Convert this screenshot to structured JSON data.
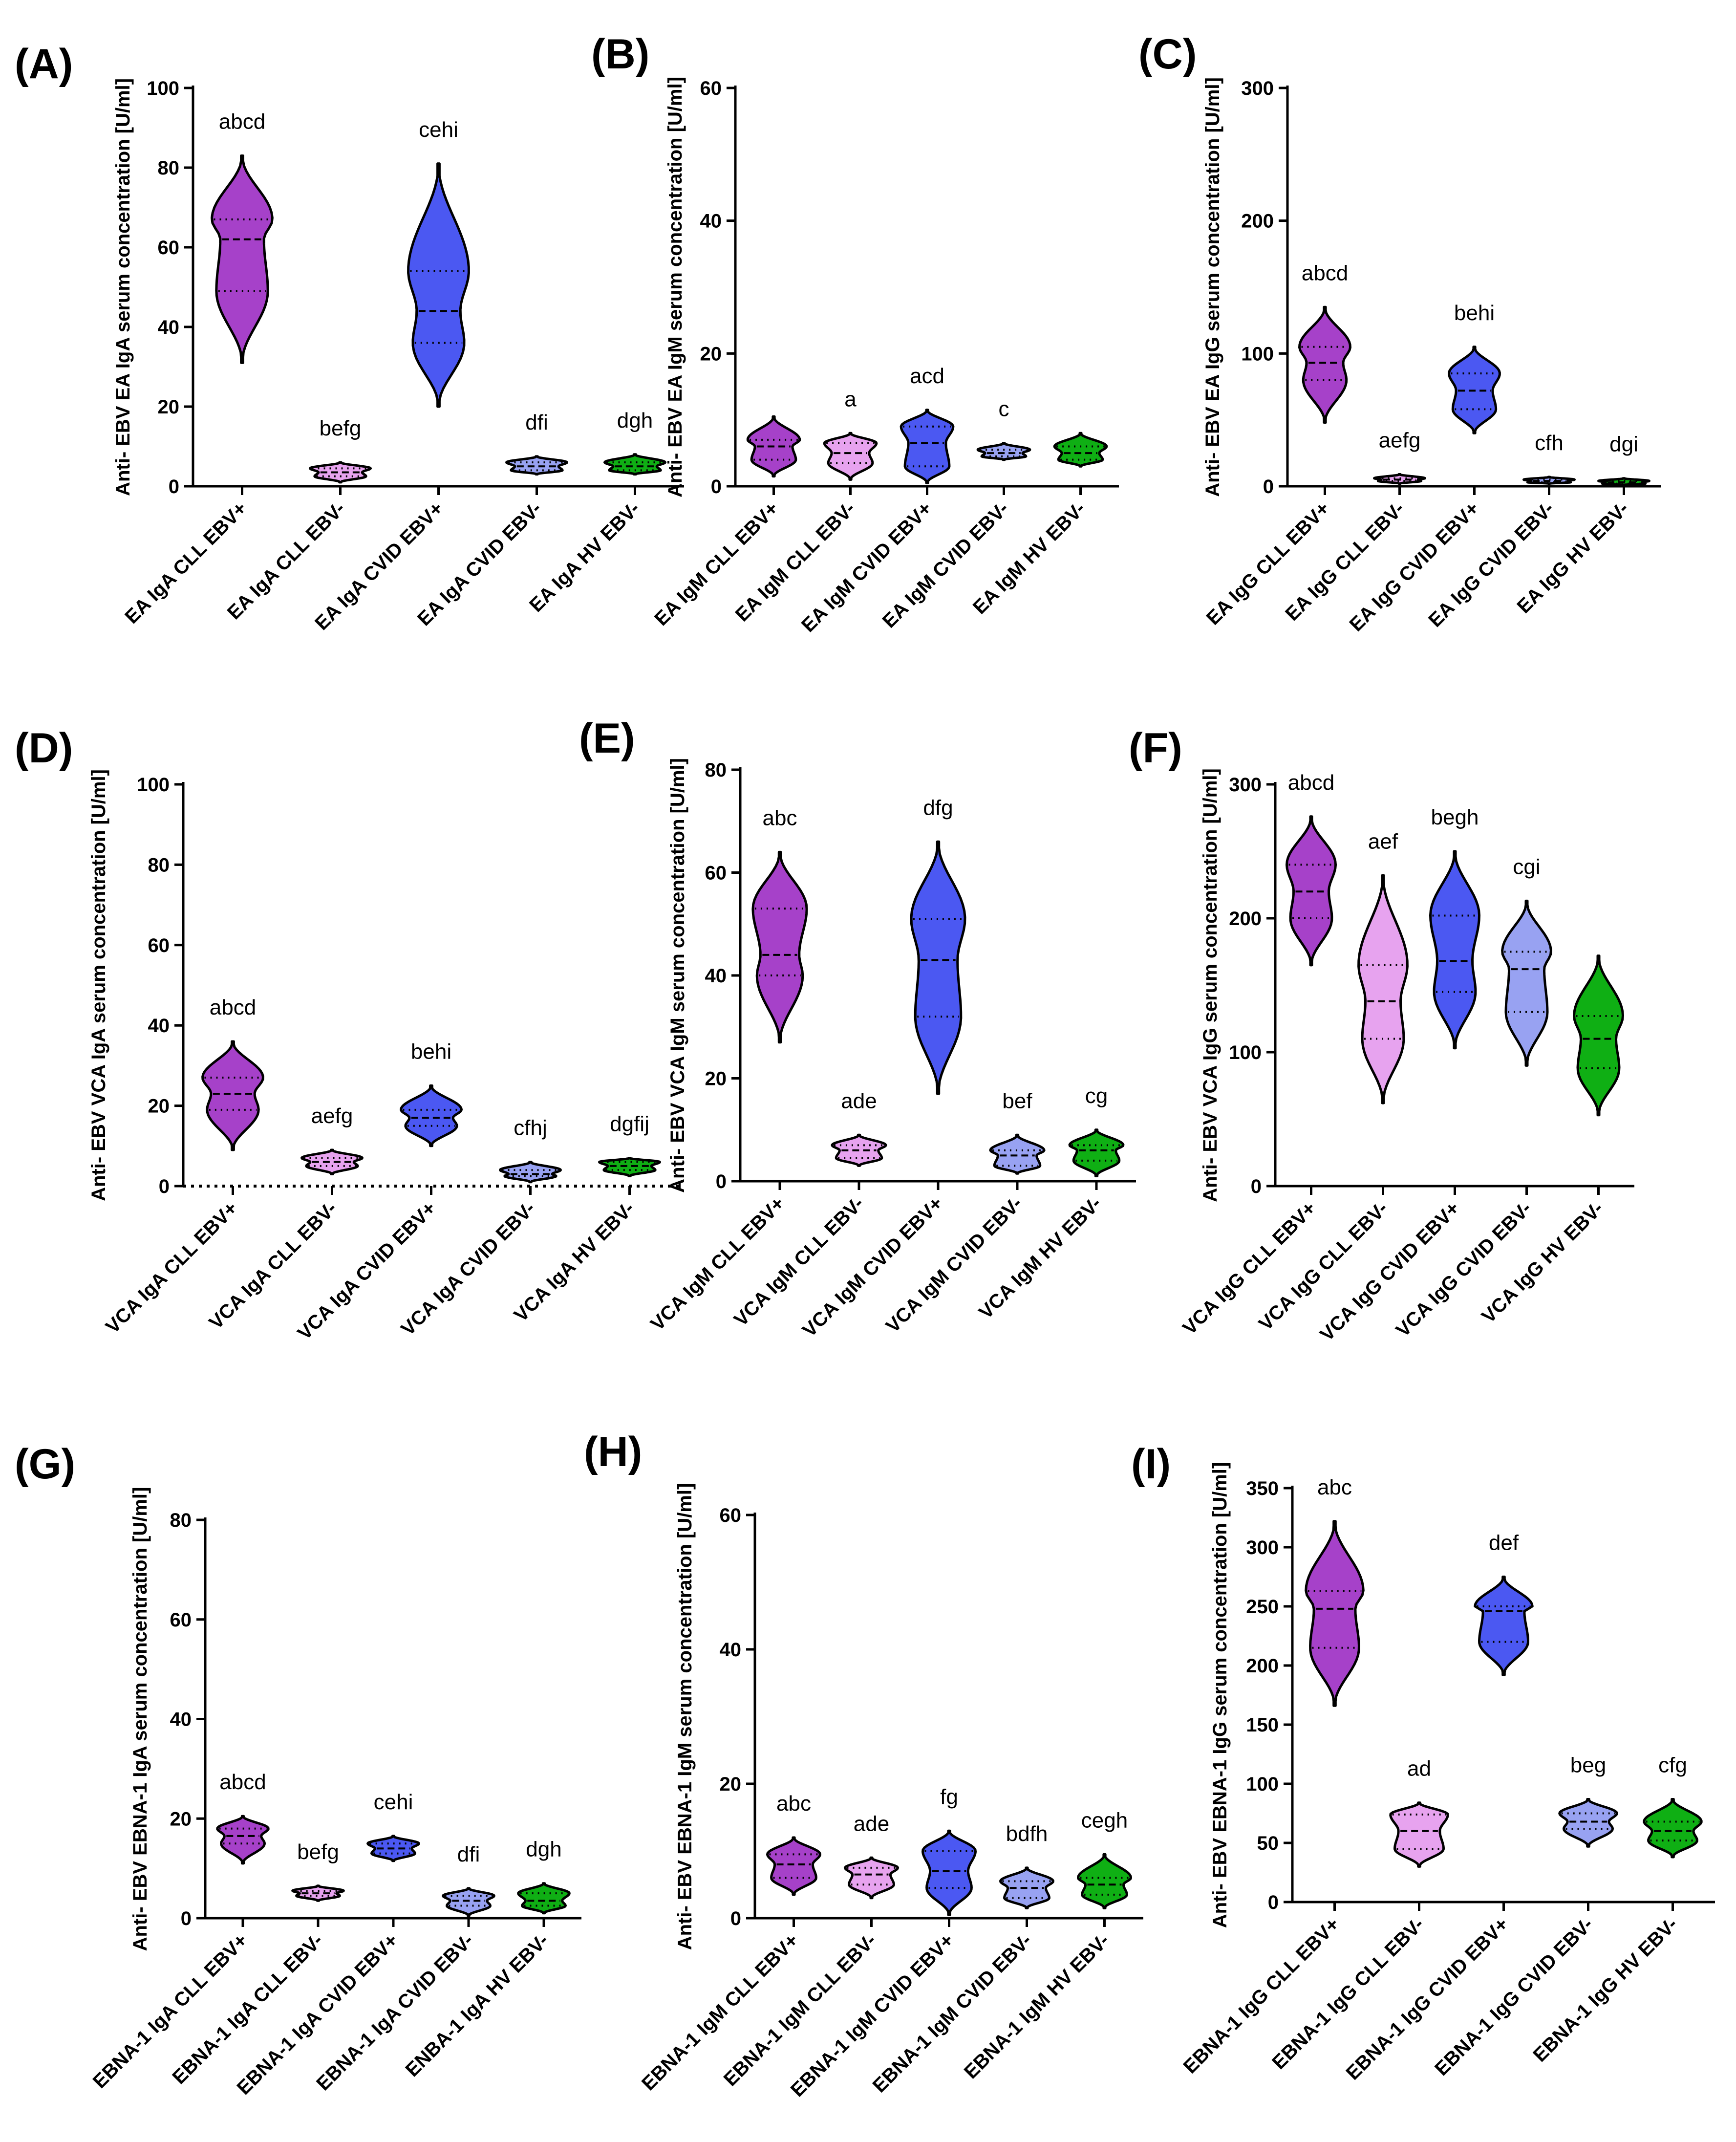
{
  "figure": {
    "colors": {
      "CLL EBV+": "#a641c9",
      "CLL EBV-": "#e7a3ef",
      "CVID EBV+": "#4b58f2",
      "CVID EBV-": "#98a2f2",
      "HV EBV-": "#0faf14"
    }
  },
  "chart_data": [
    {
      "type": "violin",
      "panel": "(A)",
      "ylabel": "Anti- EBV EA IgA serum concentration [U/ml]",
      "ylim": [
        0,
        100
      ],
      "yticks": [
        "0",
        "20",
        "40",
        "60",
        "80",
        "100"
      ],
      "categories": [
        "EA IgA CLL EBV+",
        "EA IgA CLL EBV-",
        "EA IgA CVID EBV+",
        "EA IgA CVID EBV-",
        "EA IgA HV EBV-"
      ],
      "groups": [
        "CLL EBV+",
        "CLL EBV-",
        "CVID EBV+",
        "CVID EBV-",
        "HV EBV-"
      ],
      "min": [
        31,
        1,
        20,
        3,
        3
      ],
      "q1": [
        49,
        2.5,
        36,
        4,
        4
      ],
      "median": [
        62,
        3.5,
        44,
        5,
        5
      ],
      "q3": [
        67,
        4.5,
        54,
        6,
        6
      ],
      "max": [
        83,
        6,
        81,
        7.5,
        8
      ],
      "significance": [
        "abcd",
        "befg",
        "cehi",
        "dfi",
        "dgh"
      ]
    },
    {
      "type": "violin",
      "panel": "(B)",
      "ylabel": "Anti- EBV EA IgM serum concentration [U/ml]",
      "ylim": [
        0,
        60
      ],
      "yticks": [
        "0",
        "20",
        "40",
        "60"
      ],
      "categories": [
        "EA IgM CLL EBV+",
        "EA IgM CLL EBV-",
        "EA IgM CVID EBV+",
        "EA IgM CVID EBV-",
        "EA IgM HV EBV-"
      ],
      "groups": [
        "CLL EBV+",
        "CLL EBV-",
        "CVID EBV+",
        "CVID EBV-",
        "HV EBV-"
      ],
      "min": [
        1.5,
        1,
        0.5,
        4,
        3
      ],
      "q1": [
        4,
        3.5,
        3,
        4.5,
        4
      ],
      "median": [
        6,
        5,
        6.5,
        5,
        5
      ],
      "q3": [
        7,
        6.5,
        9,
        5.5,
        6
      ],
      "max": [
        10.5,
        8,
        11.5,
        6.5,
        8
      ],
      "significance": [
        "",
        "a",
        "acd",
        "c",
        ""
      ]
    },
    {
      "type": "violin",
      "panel": "(C)",
      "ylabel": "Anti- EBV EA IgG serum concentration [U/ml]",
      "ylim": [
        0,
        300
      ],
      "yticks": [
        "0",
        "100",
        "200",
        "300"
      ],
      "categories": [
        "EA IgG CLL EBV+",
        "EA IgG CLL EBV-",
        "EA IgG CVID EBV+",
        "EA IgG CVID EBV-",
        "EA IgG HV EBV-"
      ],
      "groups": [
        "CLL EBV+",
        "CLL EBV-",
        "CVID EBV+",
        "CVID EBV-",
        "HV EBV-"
      ],
      "min": [
        48,
        2,
        40,
        2,
        1
      ],
      "q1": [
        80,
        4,
        58,
        3,
        2
      ],
      "median": [
        93,
        5,
        72,
        4,
        3
      ],
      "q3": [
        105,
        6,
        85,
        5,
        4
      ],
      "max": [
        135,
        9,
        105,
        7,
        6
      ],
      "significance": [
        "abcd",
        "aefg",
        "behi",
        "cfh",
        "dgi"
      ]
    },
    {
      "type": "violin",
      "panel": "(D)",
      "ylabel": "Anti- EBV VCA IgA serum concentration [U/ml]",
      "ylim": [
        0,
        100
      ],
      "yticks": [
        "0",
        "20",
        "40",
        "60",
        "80",
        "100"
      ],
      "categories": [
        "VCA IgA CLL EBV+",
        "VCA IgA CLL EBV-",
        "VCA IgA CVID EBV+",
        "VCA IgA CVID EBV-",
        "VCA IgA HV EBV-"
      ],
      "groups": [
        "CLL EBV+",
        "CLL EBV-",
        "CVID EBV+",
        "CVID EBV-",
        "HV EBV-"
      ],
      "min": [
        9,
        3,
        10,
        1,
        2.5
      ],
      "q1": [
        19,
        5,
        15,
        2.5,
        4
      ],
      "median": [
        23,
        6,
        17,
        3,
        5
      ],
      "q3": [
        27,
        7,
        19,
        4,
        6
      ],
      "max": [
        36,
        9,
        25,
        6,
        7
      ],
      "significance": [
        "abcd",
        "aefg",
        "behi",
        "cfhj",
        "dgfij"
      ],
      "baseline": "dotted line at 0"
    },
    {
      "type": "violin",
      "panel": "(E)",
      "ylabel": "Anti- EBV VCA IgM serum concentration [U/ml]",
      "ylim": [
        0,
        80
      ],
      "yticks": [
        "0",
        "20",
        "40",
        "60",
        "80"
      ],
      "categories": [
        "VCA IgM CLL EBV+",
        "VCA IgM CLL EBV-",
        "VCA IgM CVID EBV+",
        "VCA IgM CVID EBV-",
        "VCA IgM HV EBV-"
      ],
      "groups": [
        "CLL EBV+",
        "CLL EBV-",
        "CVID EBV+",
        "CVID EBV-",
        "HV EBV-"
      ],
      "min": [
        27,
        3,
        17,
        1.5,
        1
      ],
      "q1": [
        40,
        4.5,
        32,
        3,
        4
      ],
      "median": [
        44,
        6,
        43,
        5,
        6
      ],
      "q3": [
        53,
        7,
        51,
        6,
        7
      ],
      "max": [
        64,
        9,
        66,
        9,
        10
      ],
      "significance": [
        "abc",
        "ade",
        "dfg",
        "bef",
        "cg"
      ]
    },
    {
      "type": "violin",
      "panel": "(F)",
      "ylabel": "Anti- EBV VCA IgG serum concentration [U/ml]",
      "ylim": [
        0,
        300
      ],
      "yticks": [
        "0",
        "100",
        "200",
        "300"
      ],
      "categories": [
        "VCA IgG CLL EBV+",
        "VCA IgG CLL EBV-",
        "VCA IgG CVID EBV+",
        "VCA IgG CVID EBV-",
        "VCA IgG HV EBV-"
      ],
      "groups": [
        "CLL EBV+",
        "CLL EBV-",
        "CVID EBV+",
        "CVID EBV-",
        "HV EBV-"
      ],
      "min": [
        165,
        62,
        103,
        90,
        53
      ],
      "q1": [
        200,
        110,
        145,
        130,
        88
      ],
      "median": [
        220,
        138,
        168,
        162,
        110
      ],
      "q3": [
        240,
        165,
        202,
        175,
        127
      ],
      "max": [
        276,
        232,
        250,
        213,
        172
      ],
      "significance": [
        "abcd",
        "aef",
        "begh",
        "cgi",
        ""
      ]
    },
    {
      "type": "violin",
      "panel": "(G)",
      "ylabel": "Anti- EBV EBNA-1 IgA serum concentration [U/ml]",
      "ylim": [
        0,
        80
      ],
      "yticks": [
        "0",
        "20",
        "40",
        "60",
        "80"
      ],
      "categories": [
        "EBNA-1 IgA CLL EBV+",
        "EBNA-1 IgA CLL EBV-",
        "EBNA-1 IgA CVID EBV+",
        "EBNA-1 IgA CVID EBV-",
        "ENBA-1 IgA HV EBV-"
      ],
      "groups": [
        "CLL EBV+",
        "CLL EBV-",
        "CVID EBV+",
        "CVID EBV-",
        "HV EBV-"
      ],
      "min": [
        11,
        3.5,
        11.5,
        0.5,
        1
      ],
      "q1": [
        15,
        4.5,
        13,
        2.5,
        2.5
      ],
      "median": [
        16.5,
        5,
        14,
        3.5,
        3.5
      ],
      "q3": [
        18,
        5.5,
        15,
        4.5,
        5
      ],
      "max": [
        20.5,
        6.5,
        16.5,
        6,
        7
      ],
      "significance": [
        "abcd",
        "befg",
        "cehi",
        "dfi",
        "dgh"
      ]
    },
    {
      "type": "violin",
      "panel": "(H)",
      "ylabel": "Anti- EBV EBNA-1 IgM serum concentration [U/ml]",
      "ylim": [
        0,
        60
      ],
      "yticks": [
        "0",
        "20",
        "40",
        "60"
      ],
      "categories": [
        "EBNA-1 IgM CLL EBV+",
        "EBNA-1 IgM CLL EBV-",
        "EBNA-1 IgM CVID EBV+",
        "EBNA-1 IgM CVID EBV-",
        "EBNA-1 IgM HV EBV-"
      ],
      "groups": [
        "CLL EBV+",
        "CLL EBV-",
        "CVID EBV+",
        "CVID EBV-",
        "HV EBV-"
      ],
      "min": [
        3.5,
        3,
        0.5,
        1.5,
        1.5
      ],
      "q1": [
        6,
        5,
        4.5,
        3,
        3.5
      ],
      "median": [
        8,
        6.5,
        7,
        4.5,
        5
      ],
      "q3": [
        9.5,
        7.5,
        10,
        5.5,
        6
      ],
      "max": [
        12,
        9,
        13,
        7.5,
        9.5
      ],
      "significance": [
        "abc",
        "ade",
        "fg",
        "bdfh",
        "cegh"
      ]
    },
    {
      "type": "violin",
      "panel": "(I)",
      "ylabel": "Anti- EBV EBNA-1 IgG serum concentration [U/ml]",
      "ylim": [
        0,
        350
      ],
      "yticks": [
        "0",
        "50",
        "100",
        "150",
        "200",
        "250",
        "300",
        "350"
      ],
      "categories": [
        "EBNA-1 IgG CLL EBV+",
        "EBNA-1 IgG CLL EBV-",
        "EBNA-1 IgG CVID EBV+",
        "EBNA-1 IgG CVID EBV-",
        "EBNA-1 IgG HV EBV-"
      ],
      "groups": [
        "CLL EBV+",
        "CLL EBV-",
        "CVID EBV+",
        "CVID EBV-",
        "HV EBV-"
      ],
      "min": [
        166,
        30,
        192,
        47,
        38
      ],
      "q1": [
        215,
        45,
        220,
        62,
        52
      ],
      "median": [
        248,
        60,
        246,
        68,
        60
      ],
      "q3": [
        263,
        74,
        250,
        75,
        68
      ],
      "max": [
        322,
        84,
        275,
        87,
        87
      ],
      "significance": [
        "abc",
        "ad",
        "def",
        "beg",
        "cfg"
      ]
    }
  ]
}
